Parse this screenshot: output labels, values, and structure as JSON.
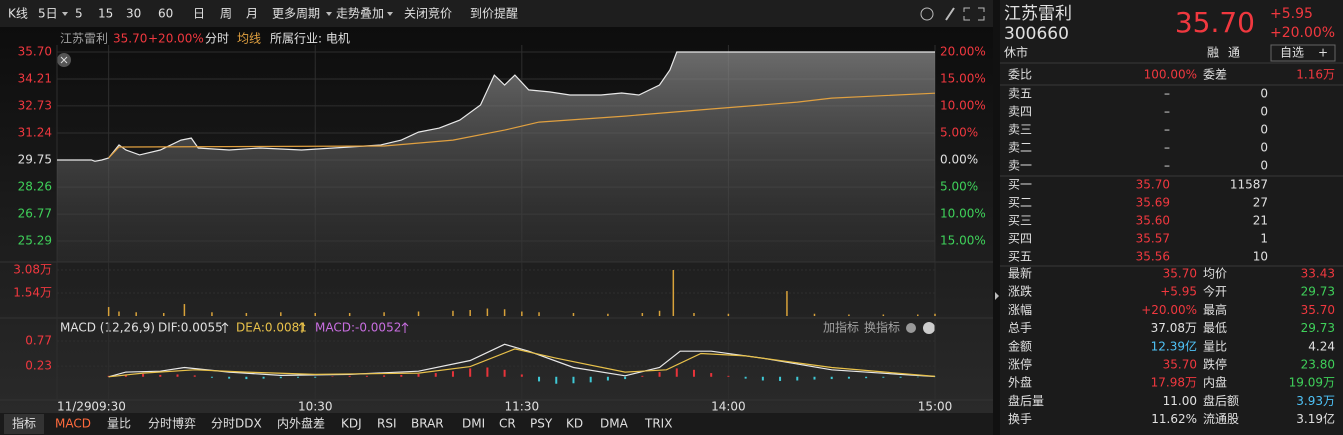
{
  "toolbar": {
    "items": [
      "K线",
      "5日",
      "5",
      "15",
      "30",
      "60",
      "日",
      "周",
      "月",
      "更多周期",
      "走势叠加",
      "关闭竞价",
      "到价提醒"
    ]
  },
  "chart_header": {
    "name": "江苏雷利",
    "price": "35.70",
    "change_pct": "+20.00%",
    "industry": "所属行业: 电机"
  },
  "chart_data": [
    {
      "type": "line",
      "xlim": [
        -15,
        240
      ],
      "xticks": [
        {
          "value": -15,
          "label": "11/29"
        },
        {
          "value": 0,
          "label": "09:30"
        },
        {
          "value": 60,
          "label": "10:30"
        },
        {
          "value": 120,
          "label": "11:30"
        },
        {
          "value": 180,
          "label": "14:00"
        },
        {
          "value": 240,
          "label": "15:00"
        }
      ],
      "ylim": [
        25.29,
        35.7
      ],
      "yticks": [
        {
          "value": 35.7,
          "label": "35.70"
        },
        34.21,
        32.73,
        31.24,
        29.75,
        28.26,
        26.77,
        25.29
      ],
      "y2lim": [
        -15,
        20
      ],
      "y2ticks": [
        {
          "value": 20,
          "label": "20.00%"
        },
        {
          "value": 15,
          "label": "15.00%"
        },
        {
          "value": 10,
          "label": "10.00%"
        },
        {
          "value": 5,
          "label": "5.00%"
        },
        {
          "value": 0,
          "label": "0.00%"
        },
        {
          "value": -5,
          "label": "5.00%"
        },
        {
          "value": -10,
          "label": "10.00%"
        },
        {
          "value": -15,
          "label": "15.00%"
        }
      ],
      "grid": true,
      "series": [
        {
          "name": "分时",
          "color": "#e8e8e8",
          "x": [
            -15,
            -5,
            -4,
            -2,
            0,
            3,
            5,
            9,
            15,
            21,
            24,
            26,
            35,
            44,
            56,
            70,
            79,
            85,
            90,
            96,
            102,
            108,
            112,
            115,
            118,
            122,
            128,
            134,
            143,
            149,
            154,
            160,
            163,
            165,
            240
          ],
          "values": [
            29.75,
            29.75,
            29.68,
            29.75,
            29.86,
            30.58,
            30.3,
            30.03,
            30.3,
            30.85,
            30.96,
            30.41,
            30.3,
            30.41,
            30.3,
            30.47,
            30.58,
            30.85,
            31.29,
            31.51,
            31.95,
            32.78,
            34.43,
            33.88,
            34.43,
            33.61,
            33.5,
            33.33,
            33.33,
            33.44,
            33.33,
            33.88,
            34.71,
            35.7,
            35.7
          ]
        },
        {
          "name": "均线",
          "color": "#e0a040",
          "x": [
            0,
            3,
            80,
            100,
            115,
            125,
            150,
            175,
            200,
            210,
            240
          ],
          "values": [
            29.86,
            30.47,
            30.52,
            30.85,
            31.4,
            31.84,
            32.17,
            32.56,
            32.94,
            33.16,
            33.43
          ]
        }
      ]
    },
    {
      "type": "bar",
      "xlim": [
        -15,
        240
      ],
      "ylim": [
        0,
        30800
      ],
      "yticks": [
        {
          "value": 30800,
          "label": "3.08万"
        },
        {
          "value": 15400,
          "label": "1.54万"
        }
      ],
      "color": "#d8a23a",
      "x": [
        0,
        3,
        8,
        16,
        22,
        30,
        40,
        50,
        60,
        70,
        80,
        90,
        100,
        105,
        110,
        115,
        120,
        125,
        135,
        145,
        155,
        160,
        164,
        170,
        180,
        197,
        205,
        215,
        225,
        235,
        240
      ],
      "values": [
        6000,
        3000,
        2500,
        2000,
        8000,
        2500,
        2000,
        2500,
        2000,
        2000,
        2500,
        3000,
        3500,
        4000,
        5000,
        4500,
        3000,
        2500,
        2000,
        1500,
        2000,
        3500,
        30800,
        2000,
        1500,
        16700,
        1500,
        1000,
        1000,
        1000,
        1500
      ]
    },
    {
      "type": "line",
      "title": "MACD (12,26,9)",
      "readouts": [
        "DIF:0.0055",
        "DEA:0.0081",
        "MACD:-0.0052"
      ],
      "tools": [
        "加指标",
        "换指标"
      ],
      "xlim": [
        -15,
        240
      ],
      "ylim": [
        -0.5,
        0.77
      ],
      "yticks": [
        0.77,
        0.23
      ],
      "series": [
        {
          "color": "#e8e8e8",
          "x": [
            0,
            5,
            15,
            22,
            35,
            50,
            70,
            90,
            105,
            115,
            122,
            135,
            150,
            160,
            166,
            175,
            190,
            210,
            230,
            240
          ],
          "values": [
            0,
            0.1,
            0.12,
            0.2,
            0.1,
            0.03,
            0.05,
            0.12,
            0.35,
            0.7,
            0.55,
            0.2,
            0.02,
            0.2,
            0.55,
            0.55,
            0.4,
            0.15,
            0.05,
            0.0055
          ]
        },
        {
          "color": "#e8c14a",
          "x": [
            0,
            10,
            25,
            40,
            60,
            90,
            105,
            118,
            130,
            150,
            162,
            172,
            185,
            210,
            240
          ],
          "values": [
            0,
            0.08,
            0.15,
            0.1,
            0.05,
            0.08,
            0.22,
            0.6,
            0.4,
            0.1,
            0.15,
            0.5,
            0.45,
            0.2,
            0.0081
          ]
        }
      ],
      "bars": {
        "up_color": "#e8333a",
        "down_color": "#3fc9d6",
        "x": [
          0,
          5,
          10,
          15,
          20,
          25,
          30,
          35,
          40,
          45,
          50,
          55,
          60,
          65,
          70,
          75,
          80,
          85,
          90,
          95,
          100,
          105,
          110,
          115,
          120,
          125,
          130,
          135,
          140,
          145,
          150,
          155,
          160,
          165,
          170,
          175,
          180,
          185,
          190,
          195,
          200,
          205,
          210,
          215,
          220,
          225,
          230,
          235,
          240
        ],
        "values": [
          0.02,
          0.05,
          0.06,
          0.04,
          0.05,
          0.03,
          -0.02,
          -0.04,
          -0.05,
          -0.04,
          -0.03,
          -0.02,
          -0.02,
          0.01,
          0.02,
          0.02,
          0.03,
          0.04,
          0.06,
          0.08,
          0.12,
          0.18,
          0.2,
          0.15,
          0.05,
          -0.1,
          -0.15,
          -0.14,
          -0.12,
          -0.08,
          -0.05,
          0.02,
          0.1,
          0.18,
          0.15,
          0.08,
          0.02,
          -0.04,
          -0.08,
          -0.09,
          -0.08,
          -0.06,
          -0.05,
          -0.04,
          -0.03,
          -0.02,
          -0.02,
          -0.01,
          -0.0052
        ]
      }
    }
  ],
  "bottom_tabs": [
    "指标",
    "MACD",
    "量比",
    "分时博弈",
    "分时DDX",
    "内外盘差",
    "KDJ",
    "RSI",
    "BRAR",
    "DMI",
    "CR",
    "PSY",
    "KD",
    "DMA",
    "TRIX"
  ],
  "quote": {
    "name": "江苏雷利",
    "code": "300660",
    "price": "35.70",
    "change": "+5.95",
    "change_pct": "+20.00%",
    "status": "休市",
    "tags": [
      "融",
      "通"
    ],
    "watch": "自选",
    "watch_add": "+"
  },
  "order_book": {
    "ratio_label": "委比",
    "ratio": "100.00%",
    "diff_label": "委差",
    "diff": "1.16万",
    "sell": [
      [
        "卖五",
        "–",
        "0"
      ],
      [
        "卖四",
        "–",
        "0"
      ],
      [
        "卖三",
        "–",
        "0"
      ],
      [
        "卖二",
        "–",
        "0"
      ],
      [
        "卖一",
        "–",
        "0"
      ]
    ],
    "buy": [
      [
        "买一",
        "35.70",
        "11587"
      ],
      [
        "买二",
        "35.69",
        "27"
      ],
      [
        "买三",
        "35.60",
        "21"
      ],
      [
        "买四",
        "35.57",
        "1"
      ],
      [
        "买五",
        "35.56",
        "10"
      ]
    ]
  },
  "stats": {
    "rows": [
      [
        "最新",
        "35.70",
        "均价",
        "33.43"
      ],
      [
        "涨跌",
        "+5.95",
        "今开",
        "29.73"
      ],
      [
        "涨幅",
        "+20.00%",
        "最高",
        "35.70"
      ],
      [
        "总手",
        "37.08万",
        "最低",
        "29.73"
      ],
      [
        "金额",
        "12.39亿",
        "量比",
        "4.24"
      ],
      [
        "涨停",
        "35.70",
        "跌停",
        "23.80"
      ],
      [
        "外盘",
        "17.98万",
        "内盘",
        "19.09万"
      ],
      [
        "盘后量",
        "11.00",
        "盘后额",
        "3.93万"
      ],
      [
        "换手",
        "11.62%",
        "流通股",
        "3.19亿"
      ]
    ]
  }
}
